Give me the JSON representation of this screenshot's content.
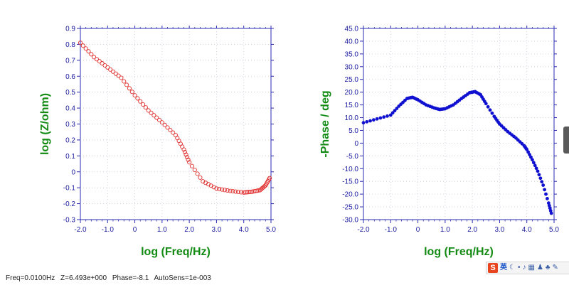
{
  "chart_data": [
    {
      "type": "scatter",
      "xlabel": "log (Freq/Hz)",
      "ylabel": "log (Z/ohm)",
      "xlim": [
        -2.0,
        5.0
      ],
      "ylim": [
        -0.3,
        0.9
      ],
      "x_ticks": [
        "-2.0",
        "-1.0",
        "0",
        "1.0",
        "2.0",
        "3.0",
        "4.0",
        "5.0"
      ],
      "y_ticks": [
        "0.9",
        "0.8",
        "0.7",
        "0.6",
        "0.5",
        "0.4",
        "0.3",
        "0.2",
        "0.1",
        "0",
        "-0.1",
        "-0.2",
        "-0.3"
      ],
      "grid": true,
      "marker": "open-circle",
      "color": "#e03030",
      "series": [
        {
          "x": [
            -2.0,
            -1.5,
            -1.0,
            -0.5,
            0.0,
            0.5,
            1.0,
            1.5,
            1.8,
            2.0,
            2.5,
            3.0,
            3.5,
            4.0,
            4.3,
            4.6,
            4.8,
            4.95
          ],
          "y": [
            0.81,
            0.72,
            0.655,
            0.59,
            0.48,
            0.385,
            0.31,
            0.23,
            0.14,
            0.06,
            -0.06,
            -0.105,
            -0.12,
            -0.13,
            -0.125,
            -0.115,
            -0.085,
            -0.04
          ]
        }
      ]
    },
    {
      "type": "scatter",
      "xlabel": "log (Freq/Hz)",
      "ylabel": "-Phase / deg",
      "xlim": [
        -2.0,
        5.0
      ],
      "ylim": [
        -30.0,
        45.0
      ],
      "x_ticks": [
        "-2.0",
        "-1.0",
        "0",
        "1.0",
        "2.0",
        "3.0",
        "4.0",
        "5.0"
      ],
      "y_ticks": [
        "45.0",
        "40.0",
        "35.0",
        "30.0",
        "25.0",
        "20.0",
        "15.0",
        "10.0",
        "5.0",
        "0",
        "-5.0",
        "-10.0",
        "-15.0",
        "-20.0",
        "-25.0",
        "-30.0"
      ],
      "grid": true,
      "marker": "filled-circle",
      "color": "#1010d0",
      "series": [
        {
          "x": [
            -2.0,
            -1.5,
            -1.0,
            -0.7,
            -0.4,
            -0.2,
            0.0,
            0.3,
            0.6,
            0.8,
            1.0,
            1.3,
            1.6,
            1.9,
            2.1,
            2.3,
            2.5,
            2.8,
            3.0,
            3.3,
            3.6,
            3.9,
            4.0,
            4.2,
            4.4,
            4.6,
            4.8,
            4.9
          ],
          "y": [
            8.0,
            9.5,
            11.0,
            14.5,
            17.5,
            18.0,
            17.0,
            15.0,
            13.8,
            13.2,
            13.5,
            15.0,
            17.5,
            19.8,
            20.2,
            19.0,
            15.5,
            10.5,
            7.5,
            4.5,
            2.0,
            -1.0,
            -2.5,
            -6.5,
            -11.0,
            -16.5,
            -23.5,
            -27.5
          ]
        }
      ]
    }
  ],
  "status_bar": {
    "freq": "Freq=0.0100Hz",
    "z": "Z=6.493e+000",
    "phase": "Phase=-8.1",
    "autosens": "AutoSens=1e-003"
  },
  "tray": {
    "logo": "S",
    "lang": "英",
    "icons": [
      "ime-moon-icon",
      "ime-dot-icon",
      "ime-mic-icon",
      "ime-keyboard-icon",
      "ime-user-icon",
      "ime-shirt-icon",
      "ime-tools-icon"
    ]
  }
}
